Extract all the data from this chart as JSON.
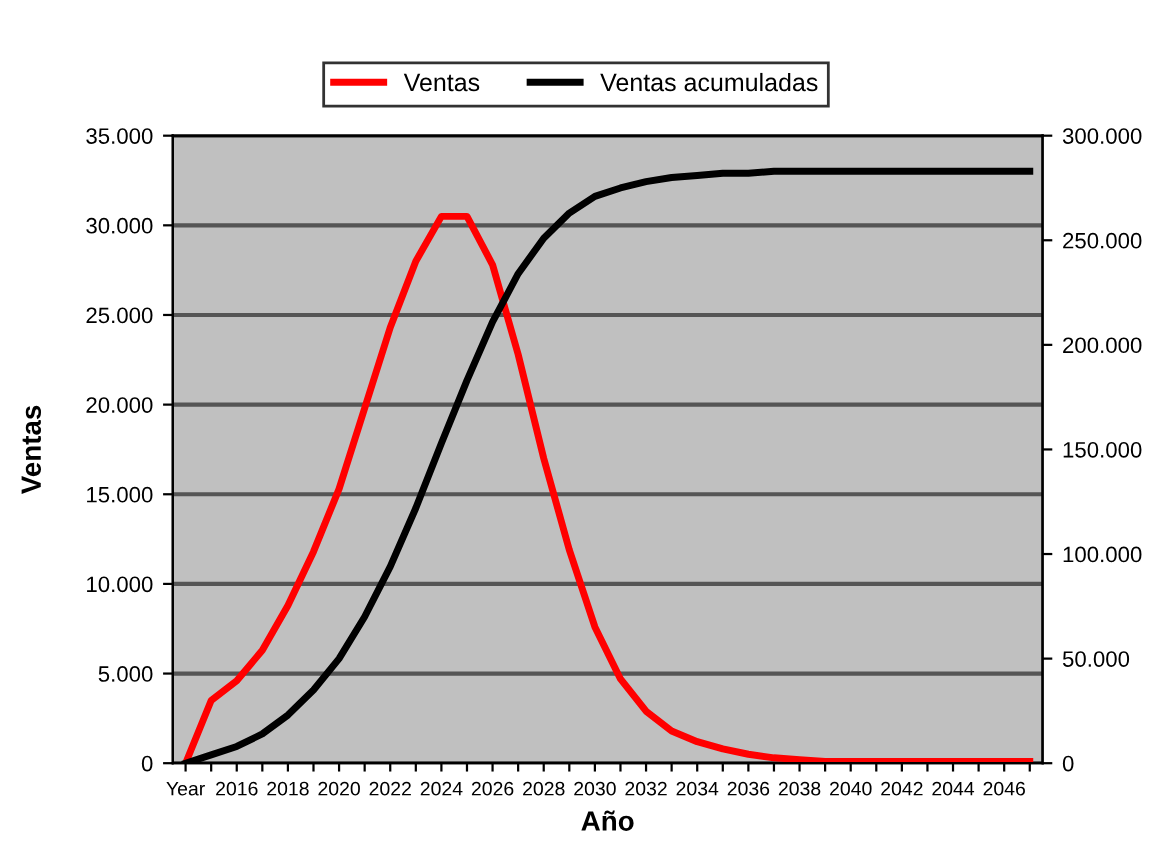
{
  "chart_data": {
    "type": "line",
    "xlabel": "Año",
    "ylabel": "Ventas",
    "categories": [
      "Year",
      null,
      "2016",
      null,
      "2018",
      null,
      "2020",
      null,
      "2022",
      null,
      "2024",
      null,
      "2026",
      null,
      "2028",
      null,
      "2030",
      null,
      "2032",
      null,
      "2034",
      null,
      "2036",
      null,
      "2038",
      null,
      "2040",
      null,
      "2042",
      null,
      "2044",
      null,
      "2046",
      null
    ],
    "series": [
      {
        "name": "Ventas",
        "color": "#ff0000",
        "values": [
          0,
          3500,
          4600,
          6300,
          8800,
          11800,
          15300,
          19800,
          24300,
          28000,
          30500,
          30500,
          27800,
          22800,
          17000,
          11900,
          7600,
          4700,
          2900,
          1800,
          1200,
          800,
          500,
          300,
          200,
          100,
          100,
          100,
          100,
          100,
          100,
          100,
          100,
          100
        ]
      },
      {
        "name": "Ventas acumuladas",
        "color": "#000000",
        "axis": "y2",
        "values": [
          0,
          4000,
          8000,
          14000,
          23000,
          35000,
          50000,
          70000,
          94000,
          122000,
          153000,
          183000,
          211000,
          234000,
          251000,
          263000,
          271000,
          275000,
          278000,
          280000,
          281000,
          282000,
          282000,
          283000,
          283000,
          283000,
          283000,
          283000,
          283000,
          283000,
          283000,
          283000,
          283000,
          283000
        ]
      }
    ],
    "ylim": [
      0,
      35000
    ],
    "yticks": [
      0,
      {
        "value": 5000,
        "label": "5.000"
      },
      {
        "value": 10000,
        "label": "10.000"
      },
      {
        "value": 15000,
        "label": "15.000"
      },
      {
        "value": 20000,
        "label": "20.000"
      },
      {
        "value": 25000,
        "label": "25.000"
      },
      {
        "value": 30000,
        "label": "30.000"
      },
      {
        "value": 35000,
        "label": "35.000"
      }
    ],
    "y2lim": [
      0,
      300000
    ],
    "y2ticks": [
      0,
      {
        "value": 50000,
        "label": "50.000"
      },
      {
        "value": 100000,
        "label": "100.000"
      },
      {
        "value": 150000,
        "label": "150.000"
      },
      {
        "value": 200000,
        "label": "200.000"
      },
      {
        "value": 250000,
        "label": "250.000"
      },
      {
        "value": 300000,
        "label": "300.000"
      }
    ],
    "grid": "y",
    "legend": "top",
    "line_style": "solid"
  }
}
